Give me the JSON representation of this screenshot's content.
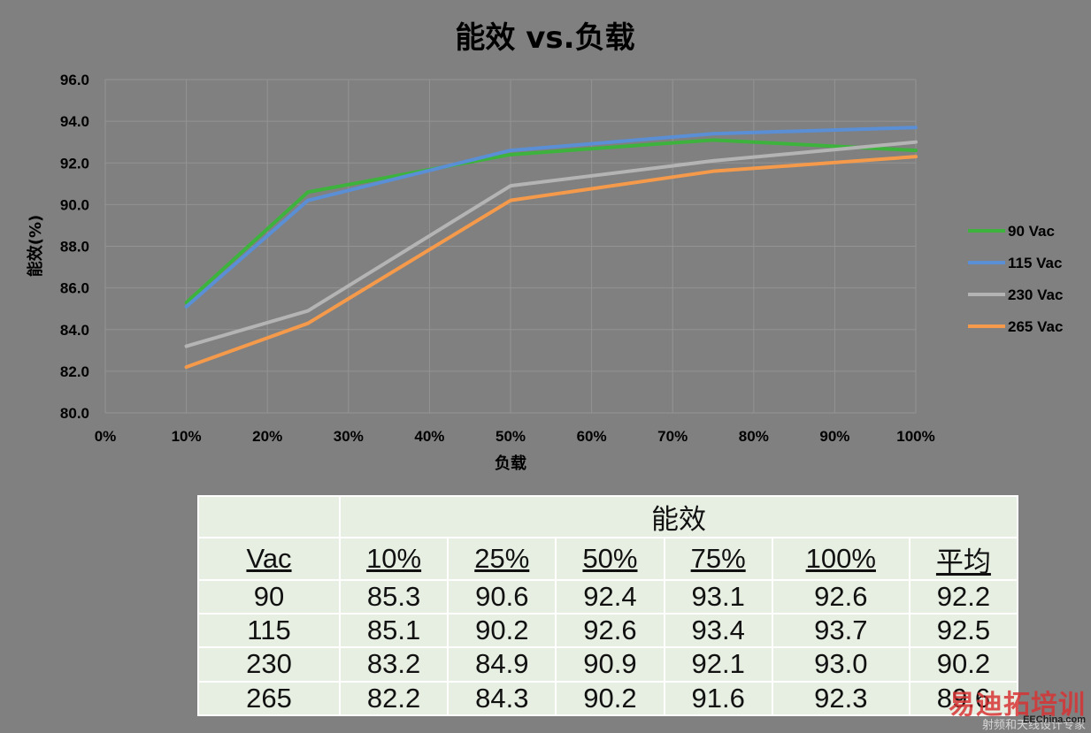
{
  "chart_data": {
    "type": "line",
    "title": "能效 vs.负载",
    "xlabel": "负载",
    "ylabel": "能效(%)",
    "xlim": [
      0,
      100
    ],
    "ylim": [
      80.0,
      96.0
    ],
    "x_ticks": [
      "0%",
      "10%",
      "20%",
      "30%",
      "40%",
      "50%",
      "60%",
      "70%",
      "80%",
      "90%",
      "100%"
    ],
    "y_ticks": [
      "80.0",
      "82.0",
      "84.0",
      "86.0",
      "88.0",
      "90.0",
      "92.0",
      "94.0",
      "96.0"
    ],
    "grid": true,
    "legend_position": "right",
    "x": [
      10,
      25,
      50,
      75,
      100
    ],
    "series": [
      {
        "name": "90 Vac",
        "color": "#3db33d",
        "values": [
          85.3,
          90.6,
          92.4,
          93.1,
          92.6
        ]
      },
      {
        "name": "115 Vac",
        "color": "#5a8fd6",
        "values": [
          85.1,
          90.2,
          92.6,
          93.4,
          93.7
        ]
      },
      {
        "name": "230 Vac",
        "color": "#b4b4b4",
        "values": [
          83.2,
          84.9,
          90.9,
          92.1,
          93.0
        ]
      },
      {
        "name": "265 Vac",
        "color": "#f59a4a",
        "values": [
          82.2,
          84.3,
          90.2,
          91.6,
          92.3
        ]
      }
    ]
  },
  "table": {
    "group_header": "能效",
    "columns": [
      "Vac",
      "10%",
      "25%",
      "50%",
      "75%",
      "100%",
      "平均"
    ],
    "rows": [
      [
        "90",
        "85.3",
        "90.6",
        "92.4",
        "93.1",
        "92.6",
        "92.2"
      ],
      [
        "115",
        "85.1",
        "90.2",
        "92.6",
        "93.4",
        "93.7",
        "92.5"
      ],
      [
        "230",
        "83.2",
        "84.9",
        "90.9",
        "92.1",
        "93.0",
        "90.2"
      ],
      [
        "265",
        "82.2",
        "84.3",
        "90.2",
        "91.6",
        "92.3",
        "89.6"
      ]
    ]
  },
  "watermark": {
    "brand": "易迪拓培训",
    "tagline": "射频和天线设计专家",
    "site": "EEChina.com"
  }
}
